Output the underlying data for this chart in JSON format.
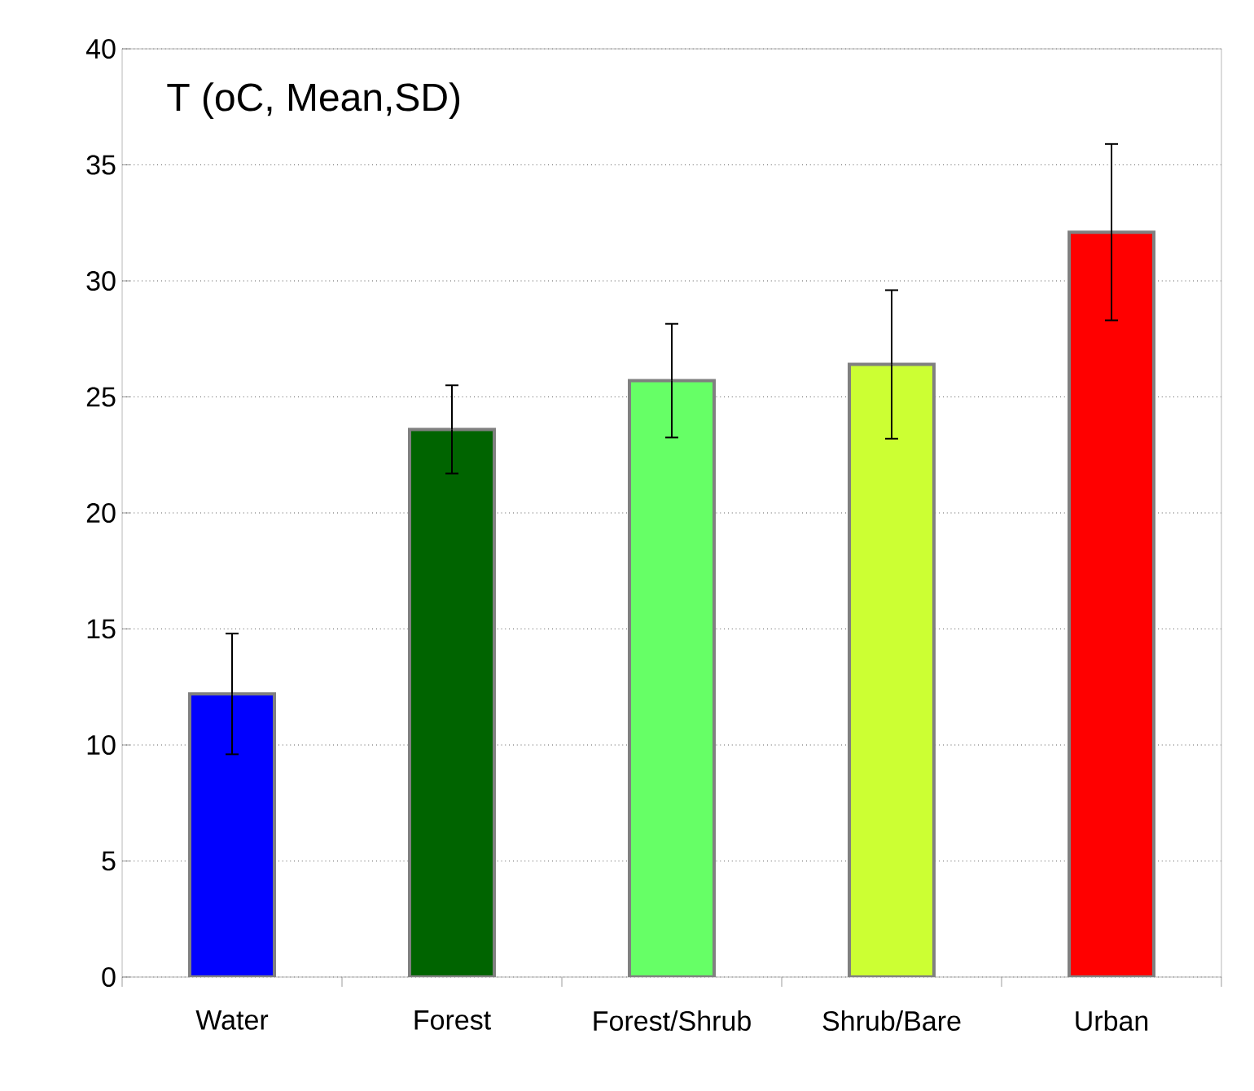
{
  "chart_data": {
    "type": "bar",
    "title": "T (oC, Mean,SD)",
    "categories": [
      "Water",
      "Forest",
      "Forest/Shrub",
      "Shrub/Bare",
      "Urban"
    ],
    "values": [
      12.2,
      23.6,
      25.7,
      26.4,
      32.1
    ],
    "errors": [
      2.6,
      1.9,
      2.45,
      3.2,
      3.8
    ],
    "colors": [
      "#0000ff",
      "#006400",
      "#66ff66",
      "#ccff33",
      "#ff0000"
    ],
    "ylim": [
      0,
      40
    ],
    "yticks": [
      0,
      5,
      10,
      15,
      20,
      25,
      30,
      35,
      40
    ],
    "grid": "y"
  }
}
